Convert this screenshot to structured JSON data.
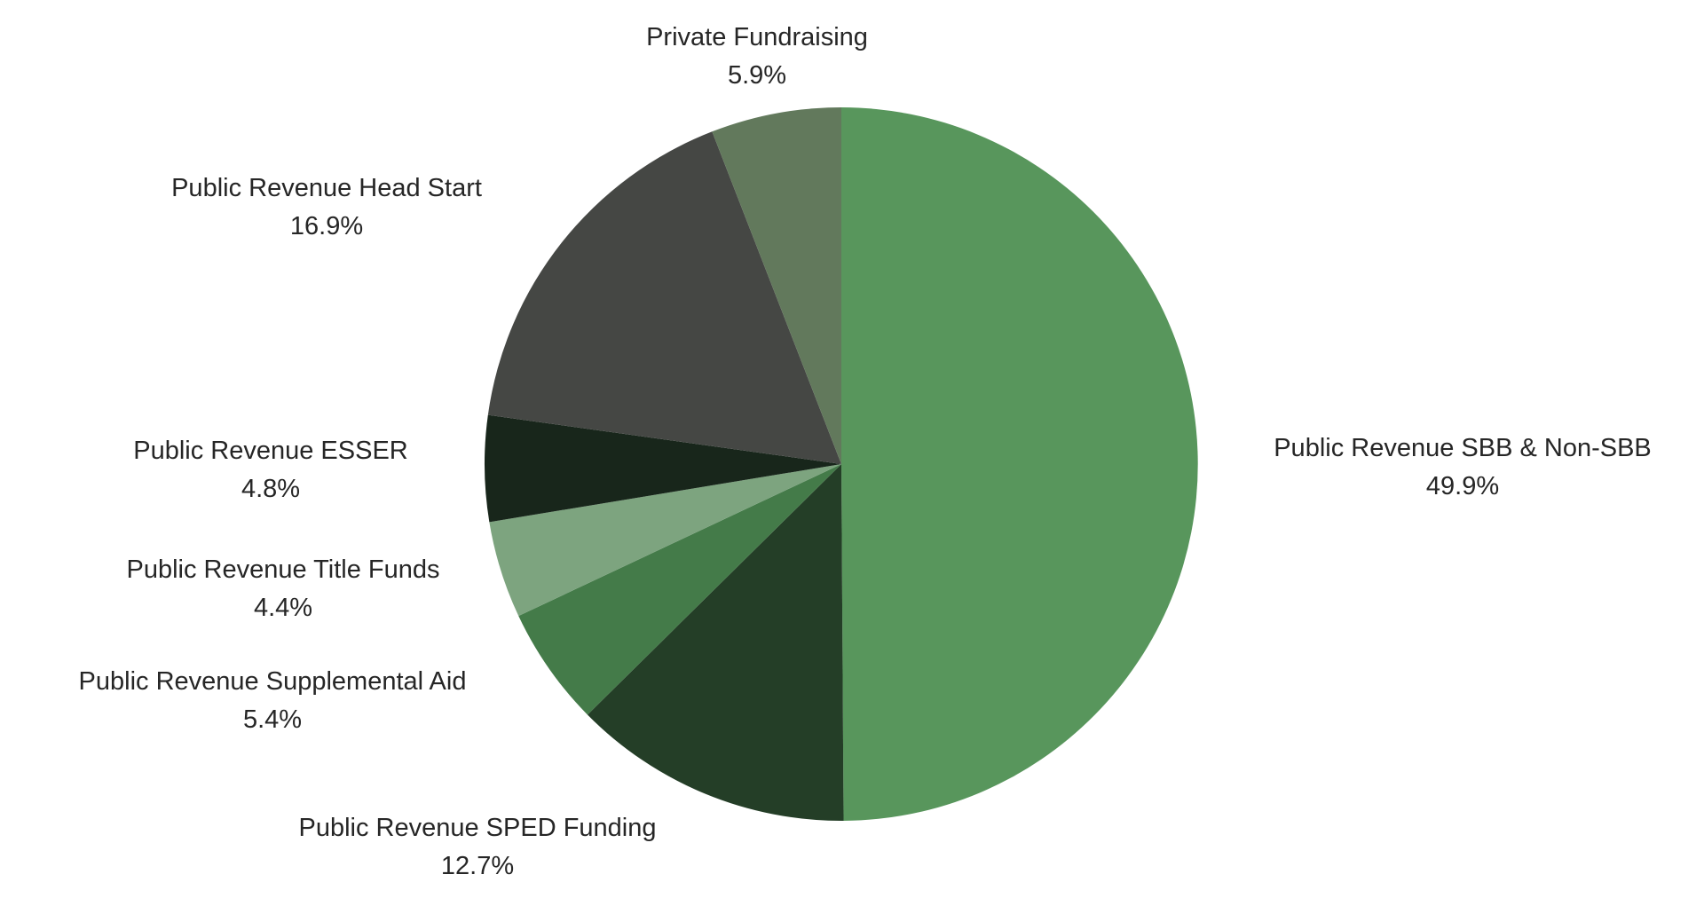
{
  "chart_data": {
    "type": "pie",
    "title": "",
    "background": "#ffffff",
    "text_color": "#262626",
    "legend_position": "labels-around-pie",
    "direction": "clockwise",
    "start_angle_deg": 0,
    "segments": [
      {
        "label": "Public Revenue SBB & Non-SBB",
        "pct_label": "49.9%",
        "value": 49.9,
        "color": "#58965c"
      },
      {
        "label": "Public Revenue SPED Funding",
        "pct_label": "12.7%",
        "value": 12.7,
        "color": "#243e27"
      },
      {
        "label": "Public Revenue Supplemental Aid",
        "pct_label": "5.4%",
        "value": 5.4,
        "color": "#447b49"
      },
      {
        "label": "Public Revenue Title Funds",
        "pct_label": "4.4%",
        "value": 4.4,
        "color": "#7da47f"
      },
      {
        "label": "Public Revenue ESSER",
        "pct_label": "4.8%",
        "value": 4.8,
        "color": "#18261b"
      },
      {
        "label": "Public Revenue Head Start",
        "pct_label": "16.9%",
        "value": 16.9,
        "color": "#454744"
      },
      {
        "label": "Private Fundraising",
        "pct_label": "5.9%",
        "value": 5.9,
        "color": "#62795c"
      }
    ]
  }
}
